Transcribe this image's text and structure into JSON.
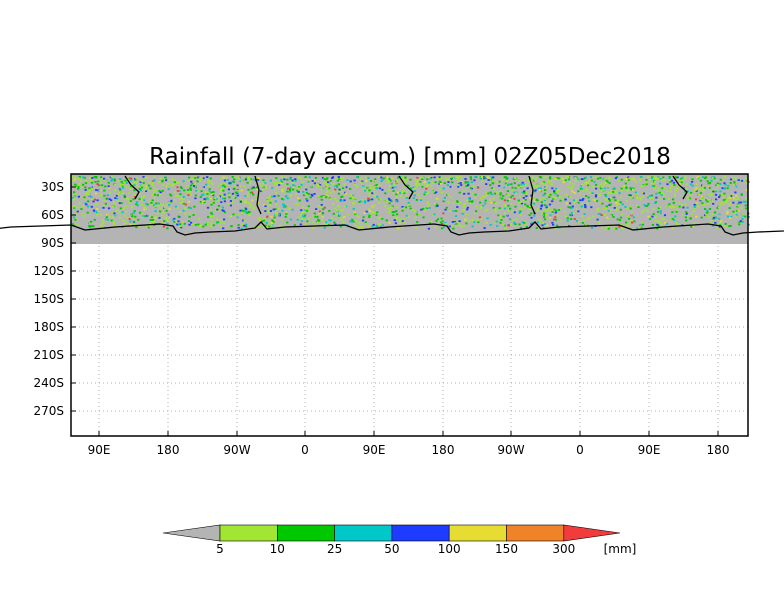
{
  "title": "Rainfall (7-day accum.) [mm] 02Z05Dec2018",
  "map": {
    "y_ticks": [
      "30S",
      "60S",
      "90S",
      "120S",
      "150S",
      "180S",
      "210S",
      "240S",
      "270S"
    ],
    "x_ticks": [
      "90E",
      "180",
      "90W",
      "0",
      "90E",
      "180",
      "90W",
      "0",
      "90E",
      "180"
    ],
    "colors": {
      "land_masked": "#b4b4b4",
      "coastline": "#000000",
      "grid": "#b0b0b0",
      "frame": "#000000"
    }
  },
  "colorbar": {
    "labels": [
      "5",
      "10",
      "25",
      "50",
      "100",
      "150",
      "300"
    ],
    "unit": "[mm]",
    "colors": [
      "#b4b4b4",
      "#a0e632",
      "#00c800",
      "#00c8c8",
      "#1e3cff",
      "#e6dc32",
      "#f08228",
      "#f03c3c"
    ]
  }
}
